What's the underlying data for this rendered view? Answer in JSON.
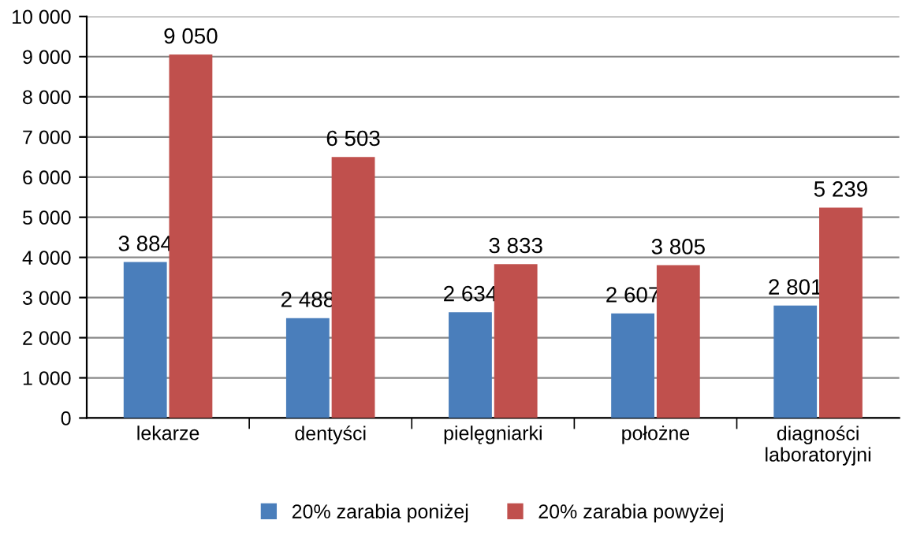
{
  "chart_data": {
    "type": "bar",
    "categories": [
      "lekarze",
      "dentyści",
      "pielęgniarki",
      "położne",
      "diagności\nlaboratoryjni"
    ],
    "series": [
      {
        "name": "20% zarabia poniżej",
        "color": "#4a7ebb",
        "values": [
          3884,
          2488,
          2634,
          2607,
          2801
        ],
        "value_labels": [
          "3 884",
          "2 488",
          "2 634",
          "2 607",
          "2 801"
        ]
      },
      {
        "name": "20% zarabia powyżej",
        "color": "#c0504d",
        "values": [
          9050,
          6503,
          3833,
          3805,
          5239
        ],
        "value_labels": [
          "9 050",
          "6 503",
          "3 833",
          "3 805",
          "5 239"
        ]
      }
    ],
    "ylim": [
      0,
      10000
    ],
    "yticks": [
      0,
      {
        "value": 1000,
        "label": "1 000"
      },
      {
        "value": 2000,
        "label": "2 000"
      },
      {
        "value": 3000,
        "label": "3 000"
      },
      {
        "value": 4000,
        "label": "4 000"
      },
      {
        "value": 5000,
        "label": "5 000"
      },
      {
        "value": 6000,
        "label": "6 000"
      },
      {
        "value": 7000,
        "label": "7 000"
      },
      {
        "value": 8000,
        "label": "8 000"
      },
      {
        "value": 9000,
        "label": "9 000"
      },
      {
        "value": 10000,
        "label": "10 000"
      }
    ],
    "grid": "y",
    "legend": "bottom"
  }
}
